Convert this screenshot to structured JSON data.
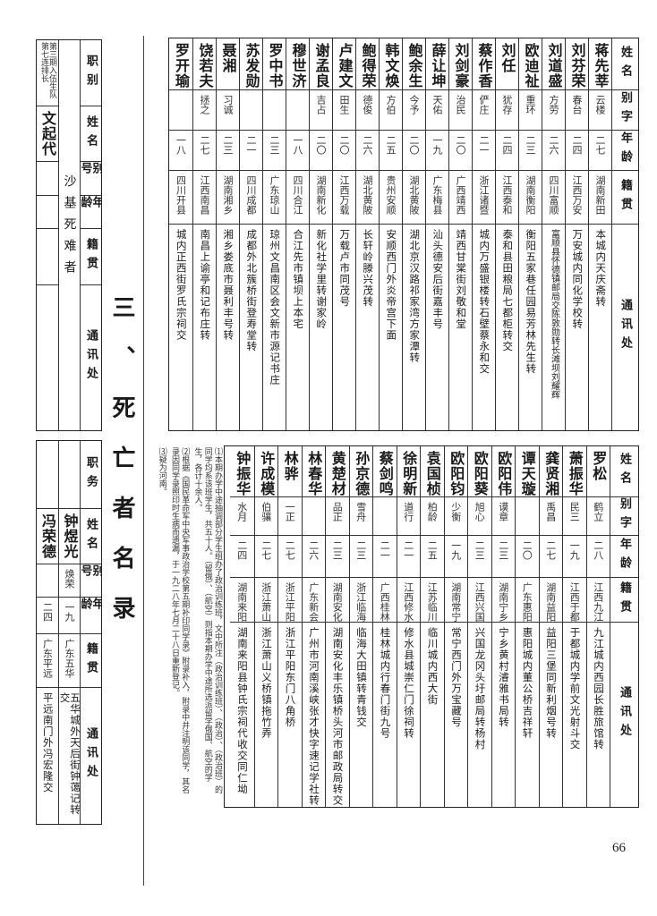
{
  "section_title": "三、死亡者名录",
  "page_number": "66",
  "table_top": {
    "headers": [
      "姓名",
      "别字",
      "年龄",
      "籍贯",
      "通讯处"
    ],
    "rows": [
      [
        "蒋先莘",
        "云楼",
        "二七",
        "湖南新田",
        "本城内天庆斋转"
      ],
      [
        "刘芬荣",
        "春台",
        "二四",
        "江西万安",
        "万安城内同化学校转"
      ],
      [
        "刘道盛",
        "方劳",
        "二六",
        "四川富顺",
        "富顺县怀德镇邮局交陈敦勋转长滩坝刘耀辉"
      ],
      [
        "欧迪祉",
        "重环",
        "二三",
        "湖南衡阳",
        "衡阳五家巷任园易芳林先生转"
      ],
      [
        "刘任",
        "犹存",
        "二四",
        "江西泰和",
        "泰和县田粮局七都柜转交"
      ],
      [
        "蔡作香",
        "俨庄",
        "二一",
        "浙江诸暨",
        "城内万盛银楼转石壁蔡永和交"
      ],
      [
        "刘剑豪",
        "治民",
        "二〇",
        "广西靖西",
        "靖西甘棠街刘敬和堂"
      ],
      [
        "薛让坤",
        "天佑",
        "一九",
        "广东梅县",
        "汕头德安后街嘉丰号"
      ],
      [
        "鲍余生",
        "今予",
        "二〇",
        "湖北黄陂",
        "湖北京汉路祁家湾方家潭转"
      ],
      [
        "韩文焕",
        "方伯",
        "二五",
        "贵州安顺",
        "安顺西门外炎帝宫下面"
      ],
      [
        "鲍得荣",
        "德俊",
        "二六",
        "湖北黄陂",
        "长轩岭滕兴茂转"
      ],
      [
        "卢建文",
        "田生",
        "二〇",
        "江西万载",
        "万载卢市同茂号"
      ],
      [
        "谢孟良",
        "吉占",
        "二〇",
        "湖南新化",
        "新化社学里转谢家岭"
      ],
      [
        "穆世济",
        "",
        "一八",
        "四川合江",
        "合江先市镇坝上本宅"
      ],
      [
        "罗中书",
        "",
        "二三",
        "广东琼山",
        "琼州文昌南区会文新市源记书庄"
      ],
      [
        "苏发勋",
        "",
        "二一",
        "四川成都",
        "成都外北簇桥街登寿堂转"
      ],
      [
        "聂湘",
        "习诚",
        "二三",
        "湖南湘乡",
        "湘乡娄底市聂利丰号转"
      ],
      [
        "饶若夫",
        "拯之",
        "二七",
        "江西南昌",
        "南昌上谕亭和记布庄转"
      ],
      [
        "罗开瑜",
        "",
        "一八",
        "四川开县",
        "城内正西街罗氏宗祠交"
      ]
    ]
  },
  "table_bottom": {
    "headers": [
      "姓名",
      "别字",
      "年龄",
      "籍贯",
      "通讯处"
    ],
    "rows": [
      [
        "罗松",
        "鹤立",
        "二八",
        "江西九江",
        "九江城内西园长胜旅馆转"
      ],
      [
        "萧振华",
        "民三",
        "一九",
        "江西于都",
        "于都城内学前文光射斗交"
      ],
      [
        "龚贤湘",
        "禹昌",
        "二七",
        "湖南益阳",
        "益阳三堡同新利烟号转"
      ],
      [
        "谭天璇",
        "",
        "二〇",
        "广东惠阳",
        "惠阳城内董公桥吉祥轩"
      ],
      [
        "欧阳伟",
        "谟章",
        "二三",
        "湖南宁乡",
        "宁乡黄村濬雅书局转"
      ],
      [
        "欧阳葵",
        "旭心",
        "二三",
        "江西兴国",
        "兴国龙冈头圩邮局转杨村"
      ],
      [
        "欧阳钧",
        "少衡",
        "一九",
        "湖南常宁",
        "常宁西门外万宝藏号"
      ],
      [
        "袁国桢",
        "柏龄",
        "二五",
        "江苏临川",
        "临川城内西大街"
      ],
      [
        "徐明新",
        "道行",
        "二一",
        "江西修水",
        "修水县城崇仁门徐祠转"
      ],
      [
        "蔡剑鸣",
        "",
        "二一",
        "广西桂林",
        "桂林城内行春门街九号"
      ],
      [
        "孙京德",
        "雪舟",
        "二三",
        "浙江临海",
        "临海大田镇转青钱交"
      ],
      [
        "黄楚材",
        "品正",
        "二三",
        "湖南安化",
        "湖南安化丰乐镇桥头河市邮政局转交"
      ],
      [
        "林春华",
        "",
        "二六",
        "广东新会",
        "广州市河南溪峡张才快字速记学社转"
      ],
      [
        "林骅",
        "一正",
        "二七",
        "浙江平阳",
        "浙江平阳东门八角桥"
      ],
      [
        "许成模",
        "伯骧",
        "二七",
        "浙江萧山",
        "浙江萧山义桥镇拖竹弄"
      ],
      [
        "钟振华",
        "水月",
        "二四",
        "湖南来阳",
        "湖南来阳县钟氏宗祠代收交同仁坳"
      ]
    ]
  },
  "notes": [
    "⑴本期办学中途抽调部分学生组办了政治训练班，文中所注（政治训练班）、（政治）、（政治班）的同学均系该班学生，共五十人。（留俄）、（航空）则指本期办学中途所选派留学俄国、航空的学生，各计十余人。",
    "⑵根据《国民革命军中央军事政治学校第五期补印同学录》附录补入，附录中并注明该同学，其名录因同学录照印时生病而遗漏，于一九二八年七月二十八日重新登记。",
    "⑶疑为河南。"
  ],
  "table_left_top": {
    "category": "沙基死难者",
    "headers": [
      "职别",
      "姓名",
      "别号",
      "年龄",
      "籍贯",
      "通讯处"
    ],
    "rows": [
      [
        "第三期入伍生队第七连排长",
        "文起代",
        "",
        "",
        "",
        ""
      ]
    ]
  },
  "table_left_bottom": {
    "headers": [
      "职务",
      "姓名",
      "别号",
      "年龄",
      "籍贯",
      "通讯处"
    ],
    "rows": [
      [
        "",
        "钟煜光",
        "焕荣",
        "一九",
        "广东五华",
        "五华城外天后街钟蔼记转交"
      ],
      [
        "",
        "冯荣德",
        "",
        "二四",
        "广东平远",
        "平远南门外冯宏隆交"
      ]
    ]
  }
}
